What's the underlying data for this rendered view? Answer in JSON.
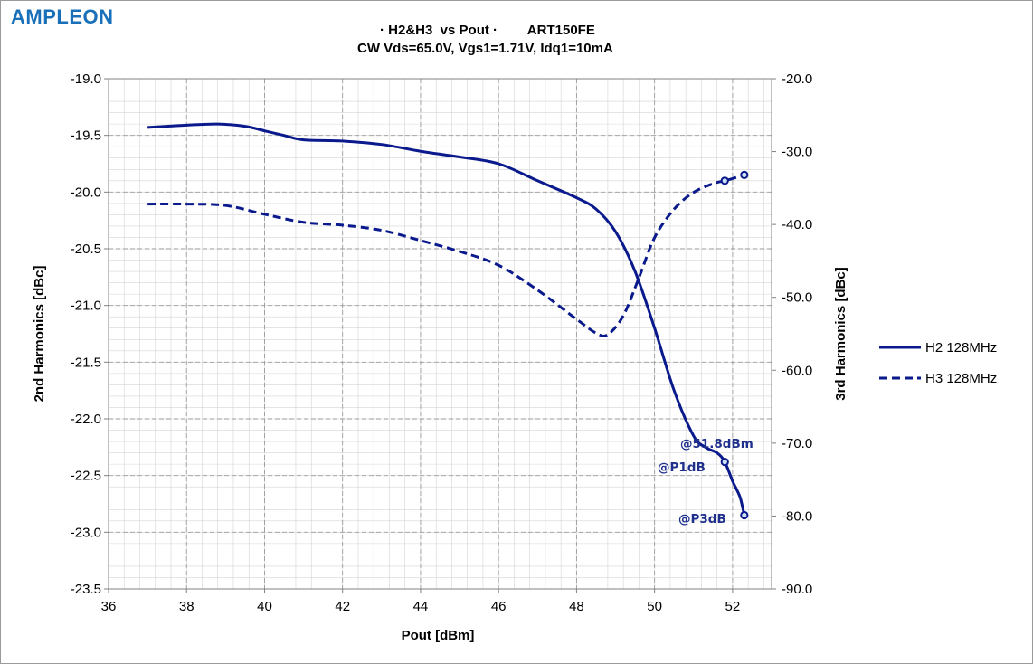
{
  "logo": {
    "text": "AMPLEON"
  },
  "chart_data": {
    "type": "line",
    "title": "· H2&H3  vs Pout ·        ART150FE",
    "subtitle": "CW Vds=65.0V, Vgs1=1.71V, Idq1=10mA",
    "xlabel": "Pout [dBm]",
    "ylabel": "2nd Harmonics [dBc]",
    "y2label": "3rd Harmonics [dBc]",
    "xlim": [
      36,
      53
    ],
    "ylim": [
      -23.5,
      -19.0
    ],
    "y2lim": [
      -90.0,
      -20.0
    ],
    "x_ticks": [
      "36",
      "38",
      "40",
      "42",
      "44",
      "46",
      "48",
      "50",
      "52"
    ],
    "y_ticks": [
      "-19.0",
      "-19.5",
      "-20.0",
      "-20.5",
      "-21.0",
      "-21.5",
      "-22.0",
      "-22.5",
      "-23.0",
      "-23.5"
    ],
    "y2_ticks": [
      "-20.0",
      "-30.0",
      "-40.0",
      "-50.0",
      "-60.0",
      "-70.0",
      "-80.0",
      "-90.0"
    ],
    "grid": true,
    "legend_position": "right",
    "series": [
      {
        "name": "H2 128MHz",
        "axis": "left",
        "style": "solid",
        "color": "#0a1a8c",
        "x": [
          37.0,
          38.0,
          38.8,
          39.5,
          40.0,
          40.5,
          41.0,
          42.0,
          43.0,
          44.0,
          45.0,
          46.0,
          47.0,
          48.0,
          48.5,
          49.0,
          49.5,
          50.0,
          50.5,
          51.0,
          51.3,
          51.6,
          51.8,
          52.0,
          52.1,
          52.2,
          52.3
        ],
        "y": [
          -19.43,
          -19.41,
          -19.4,
          -19.42,
          -19.46,
          -19.5,
          -19.54,
          -19.55,
          -19.58,
          -19.64,
          -19.69,
          -19.75,
          -19.9,
          -20.05,
          -20.15,
          -20.35,
          -20.7,
          -21.2,
          -21.75,
          -22.15,
          -22.25,
          -22.3,
          -22.38,
          -22.55,
          -22.62,
          -22.7,
          -22.85
        ]
      },
      {
        "name": "H3 128MHz",
        "axis": "right",
        "style": "dashed",
        "color": "#0a1a8c",
        "x": [
          37.0,
          38.0,
          39.0,
          40.0,
          41.0,
          42.0,
          43.0,
          44.0,
          45.0,
          46.0,
          47.0,
          48.0,
          48.5,
          48.8,
          49.2,
          49.6,
          50.0,
          50.5,
          51.0,
          51.5,
          51.8,
          52.0,
          52.3
        ],
        "y": [
          -37.2,
          -37.2,
          -37.4,
          -38.6,
          -39.7,
          -40.1,
          -40.8,
          -42.2,
          -43.7,
          -45.6,
          -49.0,
          -53.0,
          -54.9,
          -55.1,
          -52.5,
          -47.3,
          -41.8,
          -37.9,
          -35.6,
          -34.4,
          -34.0,
          -33.7,
          -33.2
        ]
      }
    ],
    "markers": [
      {
        "series": "H2 128MHz",
        "x": 51.8,
        "y": -22.38,
        "label": "@P1dB"
      },
      {
        "series": "H2 128MHz",
        "x": 52.3,
        "y": -22.85,
        "label": "@P3dB"
      },
      {
        "series": "H3 128MHz",
        "x": 51.8,
        "y": -34.0,
        "label": ""
      },
      {
        "series": "H3 128MHz",
        "x": 52.3,
        "y": -33.2,
        "label": ""
      }
    ],
    "annotations": [
      "@51.8dBm",
      "@P1dB",
      "@P3dB"
    ]
  }
}
